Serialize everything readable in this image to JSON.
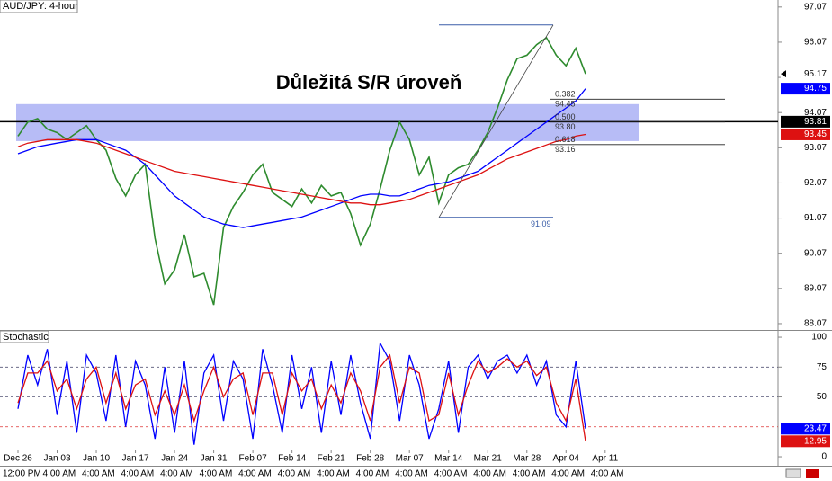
{
  "chart_data": [
    {
      "type": "line",
      "title": "AUD/JPY: 4-hour",
      "annotation": "Důležitá S/R úroveň",
      "categories": [
        "Dec 26",
        null,
        null,
        null,
        "Jan 03",
        null,
        null,
        null,
        "Jan 10",
        null,
        null,
        null,
        "Jan 17",
        null,
        null,
        null,
        "Jan 24",
        null,
        null,
        null,
        "Jan 31",
        null,
        null,
        null,
        "Feb 07",
        null,
        null,
        null,
        "Feb 14",
        null,
        null,
        null,
        "Feb 21",
        null,
        null,
        null,
        "Feb 28",
        null,
        null,
        null,
        "Mar 07",
        null,
        null,
        null,
        "Mar 14",
        null,
        null,
        null,
        "Mar 21",
        null,
        null,
        null,
        "Mar 28",
        null,
        null,
        null,
        "Apr 04",
        null,
        null,
        null,
        "Apr 11"
      ],
      "time_labels": [
        "12:00 PM",
        "4:00 AM",
        "4:00 AM",
        "4:00 AM",
        "4:00 AM",
        "4:00 AM",
        "4:00 AM",
        "4:00 AM",
        "4:00 AM",
        "4:00 AM",
        "4:00 AM",
        "4:00 AM",
        "4:00 AM",
        "4:00 AM",
        "4:00 AM",
        "4:00 AM"
      ],
      "series": [
        {
          "color": "#2e8b2e",
          "values": [
            93.4,
            93.8,
            93.9,
            93.6,
            93.5,
            93.3,
            93.5,
            93.7,
            93.3,
            93.0,
            92.2,
            91.7,
            92.3,
            92.6,
            90.5,
            89.2,
            89.6,
            90.6,
            89.4,
            89.5,
            88.6,
            90.8,
            91.4,
            91.8,
            92.3,
            92.6,
            91.8,
            91.6,
            91.4,
            91.9,
            91.5,
            92.0,
            91.7,
            91.8,
            91.2,
            90.3,
            90.9,
            91.9,
            93.0,
            93.8,
            93.3,
            92.3,
            92.8,
            91.5,
            92.3,
            92.5,
            92.6,
            93.0,
            93.5,
            94.2,
            95.0,
            95.6,
            95.7,
            96.0,
            96.2,
            95.7,
            95.4,
            95.9,
            95.17,
            null,
            null
          ]
        },
        {
          "color": "#0000ff",
          "values": [
            92.9,
            93.0,
            93.1,
            93.15,
            93.2,
            93.25,
            93.3,
            93.3,
            93.3,
            93.2,
            93.1,
            93.0,
            92.8,
            92.6,
            92.3,
            92.0,
            91.7,
            91.5,
            91.3,
            91.1,
            91.0,
            90.9,
            90.85,
            90.8,
            90.85,
            90.9,
            90.95,
            91.0,
            91.05,
            91.1,
            91.2,
            91.3,
            91.4,
            91.5,
            91.6,
            91.7,
            91.75,
            91.75,
            91.7,
            91.7,
            91.8,
            91.9,
            92.0,
            92.05,
            92.1,
            92.2,
            92.3,
            92.4,
            92.6,
            92.8,
            93.0,
            93.2,
            93.4,
            93.6,
            93.8,
            94.0,
            94.2,
            94.4,
            94.75,
            null,
            null
          ]
        },
        {
          "color": "#dd1111",
          "values": [
            93.1,
            93.2,
            93.25,
            93.3,
            93.3,
            93.3,
            93.3,
            93.25,
            93.2,
            93.1,
            93.0,
            92.9,
            92.8,
            92.7,
            92.6,
            92.5,
            92.4,
            92.35,
            92.3,
            92.25,
            92.2,
            92.15,
            92.1,
            92.05,
            92.0,
            91.95,
            91.9,
            91.85,
            91.8,
            91.75,
            91.7,
            91.65,
            91.6,
            91.55,
            91.5,
            91.5,
            91.45,
            91.45,
            91.5,
            91.55,
            91.6,
            91.7,
            91.8,
            91.9,
            92.0,
            92.1,
            92.2,
            92.3,
            92.45,
            92.6,
            92.75,
            92.85,
            92.95,
            93.05,
            93.15,
            93.25,
            93.3,
            93.4,
            93.45,
            null,
            null
          ]
        }
      ],
      "ylim": [
        87.89,
        97.27
      ],
      "yticks": [
        88.07,
        89.07,
        90.07,
        91.07,
        92.07,
        93.07,
        94.07,
        95.07,
        96.07,
        97.07
      ],
      "zone": [
        93.26,
        94.31
      ],
      "zone_color": "#aab0f5",
      "hline": 93.81,
      "swing_high": 96.56,
      "swing_low": 91.09,
      "fib_levels": [
        {
          "ratio": "0.382",
          "level": 94.45
        },
        {
          "ratio": "0.500",
          "level": {
            "value": 93.8,
            "label": "93.80"
          }
        },
        {
          "ratio": "0.618",
          "level": 93.16
        }
      ],
      "markers": [
        {
          "value": 95.17,
          "color": "#ffffff",
          "text_color": "#000000"
        },
        {
          "value": 94.75,
          "color": "#0000ff",
          "text_color": "#ffffff"
        },
        {
          "value": 93.81,
          "color": "#000000",
          "text_color": "#ffffff"
        },
        {
          "value": 93.45,
          "color": "#dd1111",
          "text_color": "#ffffff"
        }
      ]
    },
    {
      "type": "line",
      "title": "Stochastic",
      "series": [
        {
          "color": "#0000ff",
          "values": [
            40,
            85,
            60,
            90,
            35,
            80,
            20,
            85,
            70,
            30,
            85,
            25,
            80,
            60,
            15,
            75,
            20,
            80,
            10,
            70,
            85,
            30,
            80,
            65,
            15,
            90,
            60,
            20,
            85,
            40,
            75,
            20,
            80,
            35,
            85,
            45,
            15,
            95,
            80,
            30,
            85,
            60,
            15,
            40,
            80,
            20,
            75,
            85,
            65,
            80,
            85,
            70,
            85,
            60,
            80,
            35,
            25,
            80,
            23.47,
            null,
            null
          ]
        },
        {
          "color": "#dd1111",
          "values": [
            45,
            70,
            70,
            80,
            55,
            65,
            40,
            65,
            75,
            45,
            70,
            40,
            60,
            65,
            35,
            55,
            35,
            60,
            30,
            55,
            75,
            50,
            65,
            70,
            35,
            70,
            70,
            35,
            70,
            55,
            65,
            40,
            60,
            45,
            70,
            55,
            30,
            75,
            85,
            45,
            75,
            70,
            30,
            35,
            70,
            35,
            60,
            80,
            70,
            75,
            82,
            75,
            80,
            68,
            75,
            45,
            30,
            65,
            12.95,
            null,
            null
          ]
        }
      ],
      "ylim": [
        -7.5,
        105.3
      ],
      "yticks": [
        0,
        50,
        75,
        100
      ],
      "levels": [
        75,
        50,
        25
      ],
      "markers": [
        {
          "value": 23.47,
          "color": "#0000ff",
          "text_color": "#ffffff"
        },
        {
          "value": 12.95,
          "color": "#dd1111",
          "text_color": "#ffffff"
        }
      ]
    }
  ]
}
